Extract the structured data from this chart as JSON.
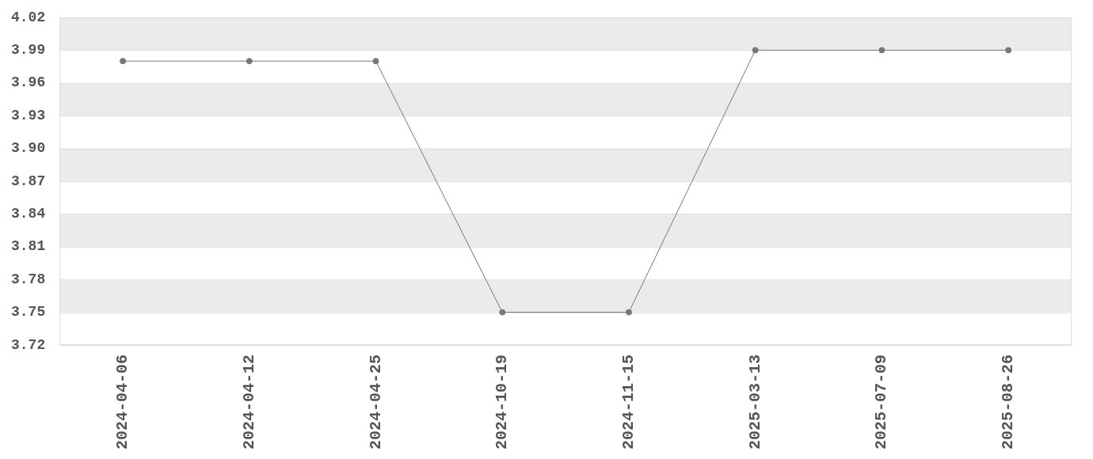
{
  "chart_data": {
    "type": "line",
    "categories": [
      "2024-04-06",
      "2024-04-12",
      "2024-04-25",
      "2024-10-19",
      "2024-11-15",
      "2025-03-13",
      "2025-07-09",
      "2025-08-26"
    ],
    "series": [
      {
        "color": "#777777",
        "values": [
          3.98,
          3.98,
          3.98,
          3.75,
          3.75,
          3.99,
          3.99,
          3.99
        ]
      }
    ],
    "ylim": [
      3.72,
      4.02
    ],
    "yticks": [
      3.72,
      3.75,
      3.78,
      3.81,
      3.84,
      3.87,
      {
        "value": 3.9,
        "label": "3.90"
      },
      3.93,
      3.96,
      3.99,
      4.02
    ],
    "grid": "y",
    "marker": "circle",
    "line_style": "solid"
  }
}
